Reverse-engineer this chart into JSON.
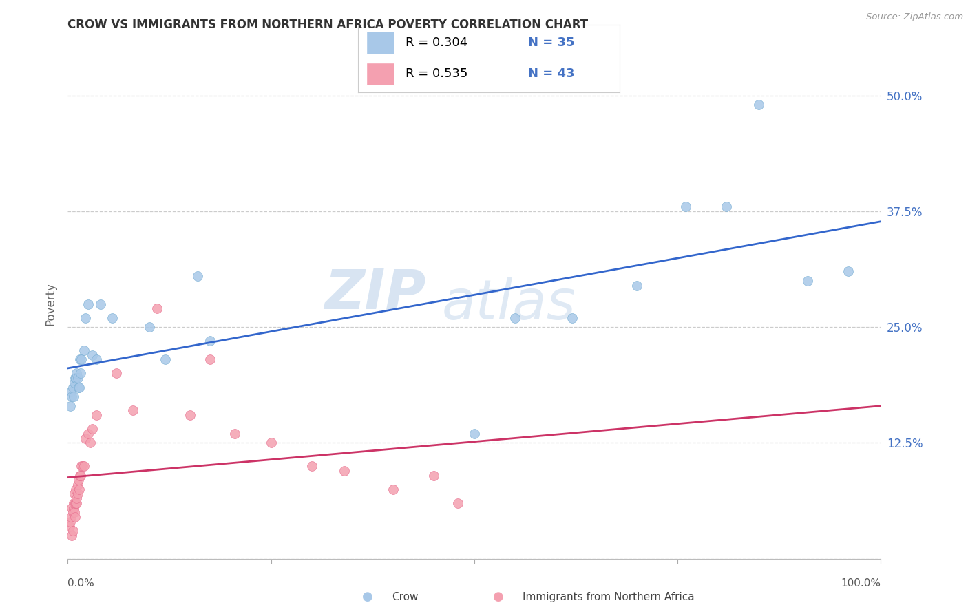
{
  "title": "CROW VS IMMIGRANTS FROM NORTHERN AFRICA POVERTY CORRELATION CHART",
  "source": "Source: ZipAtlas.com",
  "ylabel": "Poverty",
  "watermark_zip": "ZIP",
  "watermark_atlas": "atlas",
  "blue_color": "#a8c8e8",
  "blue_edge": "#7aafd4",
  "pink_color": "#f4a0b0",
  "pink_edge": "#e87090",
  "line_blue": "#3366cc",
  "line_pink": "#cc3366",
  "legend_blue_fill": "#a8c8e8",
  "legend_pink_fill": "#f4a0b0",
  "legend_border": "#cccccc",
  "grid_color": "#cccccc",
  "ytick_color": "#4472c4",
  "crow_x": [
    0.003,
    0.004,
    0.005,
    0.006,
    0.007,
    0.008,
    0.009,
    0.01,
    0.011,
    0.012,
    0.013,
    0.014,
    0.015,
    0.016,
    0.017,
    0.02,
    0.022,
    0.025,
    0.03,
    0.035,
    0.04,
    0.055,
    0.1,
    0.12,
    0.16,
    0.175,
    0.5,
    0.55,
    0.62,
    0.7,
    0.76,
    0.81,
    0.85,
    0.91,
    0.96
  ],
  "crow_y": [
    0.165,
    0.18,
    0.175,
    0.185,
    0.175,
    0.19,
    0.195,
    0.195,
    0.2,
    0.195,
    0.185,
    0.185,
    0.215,
    0.2,
    0.215,
    0.225,
    0.26,
    0.275,
    0.22,
    0.215,
    0.275,
    0.26,
    0.25,
    0.215,
    0.305,
    0.235,
    0.135,
    0.26,
    0.26,
    0.295,
    0.38,
    0.38,
    0.49,
    0.3,
    0.31
  ],
  "imm_x": [
    0.002,
    0.003,
    0.004,
    0.005,
    0.005,
    0.006,
    0.006,
    0.007,
    0.007,
    0.008,
    0.008,
    0.009,
    0.009,
    0.01,
    0.01,
    0.011,
    0.011,
    0.012,
    0.012,
    0.013,
    0.014,
    0.015,
    0.016,
    0.017,
    0.018,
    0.02,
    0.022,
    0.025,
    0.028,
    0.03,
    0.035,
    0.06,
    0.08,
    0.11,
    0.15,
    0.175,
    0.205,
    0.25,
    0.3,
    0.34,
    0.4,
    0.45,
    0.48
  ],
  "imm_y": [
    0.035,
    0.04,
    0.045,
    0.055,
    0.025,
    0.05,
    0.03,
    0.055,
    0.06,
    0.05,
    0.07,
    0.06,
    0.045,
    0.06,
    0.075,
    0.06,
    0.065,
    0.07,
    0.08,
    0.085,
    0.075,
    0.09,
    0.09,
    0.1,
    0.1,
    0.1,
    0.13,
    0.135,
    0.125,
    0.14,
    0.155,
    0.2,
    0.16,
    0.27,
    0.155,
    0.215,
    0.135,
    0.125,
    0.1,
    0.095,
    0.075,
    0.09,
    0.06
  ],
  "xlim": [
    0.0,
    1.0
  ],
  "ylim": [
    0.0,
    0.55
  ],
  "yticks": [
    0.0,
    0.125,
    0.25,
    0.375,
    0.5
  ],
  "ytick_labels": [
    "",
    "12.5%",
    "25.0%",
    "37.5%",
    "50.0%"
  ]
}
